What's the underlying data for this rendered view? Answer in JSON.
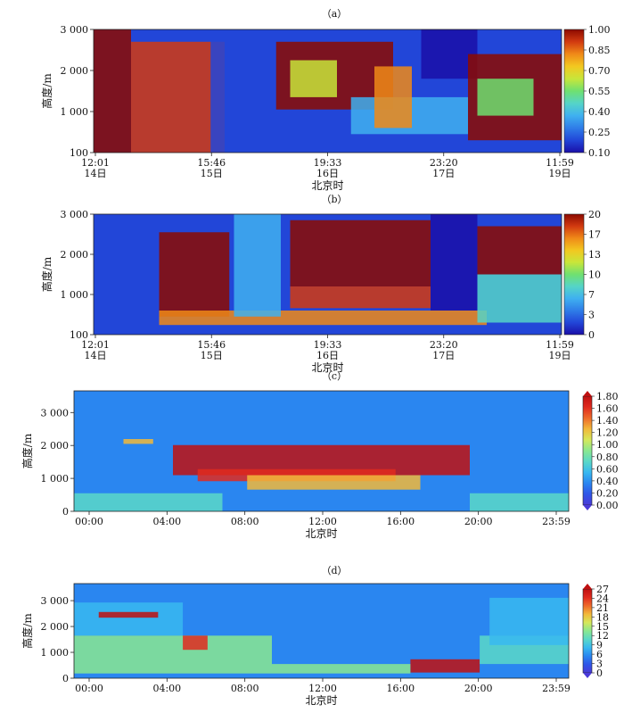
{
  "chart_data": [
    {
      "panel": "（a）",
      "type": "heatmap",
      "xlabel": "北京时",
      "ylabel": "高度/m",
      "x_ticks": [
        {
          "time": "12:01",
          "day": "14日"
        },
        {
          "time": "15:46",
          "day": "15日"
        },
        {
          "time": "19:33",
          "day": "16日"
        },
        {
          "time": "23:20",
          "day": "17日"
        },
        {
          "time": "11:59",
          "day": "19日"
        }
      ],
      "y_ticks": [
        "100",
        "1 000",
        "2 000",
        "3 000"
      ],
      "ylim": [
        100,
        3000
      ],
      "colorbar": {
        "ticks": [
          "1.00",
          "0.85",
          "0.70",
          "0.55",
          "0.40",
          "0.25",
          "0.10"
        ],
        "range": [
          0.1,
          1.0
        ],
        "colors": [
          "#1a0fa8",
          "#2246d8",
          "#2f7de8",
          "#3fb0f0",
          "#55d4c8",
          "#6fe070",
          "#c8e63a",
          "#f2c820",
          "#f08a18",
          "#d23a10",
          "#8c0a00"
        ]
      }
    },
    {
      "panel": "（b）",
      "type": "heatmap",
      "xlabel": "北京时",
      "ylabel": "高度/m",
      "x_ticks": [
        {
          "time": "12:01",
          "day": "14日"
        },
        {
          "time": "15:46",
          "day": "15日"
        },
        {
          "time": "19:33",
          "day": "16日"
        },
        {
          "time": "23:20",
          "day": "17日"
        },
        {
          "time": "11:59",
          "day": "19日"
        }
      ],
      "y_ticks": [
        "100",
        "1 000",
        "2 000",
        "3 000"
      ],
      "ylim": [
        100,
        3000
      ],
      "colorbar": {
        "ticks": [
          "20",
          "17",
          "13",
          "10",
          "7",
          "3",
          "0"
        ],
        "range": [
          0,
          20
        ],
        "colors": [
          "#1a0fa8",
          "#2246d8",
          "#2f7de8",
          "#3fb0f0",
          "#55d4c8",
          "#6fe070",
          "#c8e63a",
          "#f2c820",
          "#f08a18",
          "#d23a10",
          "#8c0a00"
        ]
      }
    },
    {
      "panel": "（c）",
      "type": "heatmap",
      "xlabel": "北京时",
      "ylabel": "高度/m",
      "x_ticks": [
        "00:00",
        "04:00",
        "08:00",
        "12:00",
        "16:00",
        "20:00",
        "23:59"
      ],
      "y_ticks": [
        "0",
        "1 000",
        "2 000",
        "3 000"
      ],
      "ylim": [
        0,
        3700
      ],
      "colorbar": {
        "ticks": [
          "1.80",
          "1.60",
          "1.40",
          "1.20",
          "1.00",
          "0.80",
          "0.60",
          "0.40",
          "0.20",
          "0.00"
        ],
        "range": [
          0,
          1.8
        ],
        "colors": [
          "#4a3ad8",
          "#2f55e8",
          "#2a86f0",
          "#38b8f0",
          "#5ad8c8",
          "#8ae890",
          "#d6e85a",
          "#f2b83a",
          "#ee6a2a",
          "#e02a1e",
          "#c01010"
        ]
      }
    },
    {
      "panel": "（d）",
      "type": "heatmap",
      "xlabel": "北京时",
      "ylabel": "高度/m",
      "x_ticks": [
        "00:00",
        "04:00",
        "08:00",
        "12:00",
        "16:00",
        "20:00",
        "23:59"
      ],
      "y_ticks": [
        "0",
        "1 000",
        "2 000",
        "3 000"
      ],
      "ylim": [
        0,
        3700
      ],
      "colorbar": {
        "ticks": [
          "27",
          "24",
          "21",
          "18",
          "15",
          "12",
          "9",
          "6",
          "3",
          "0"
        ],
        "range": [
          0,
          27
        ],
        "colors": [
          "#4a3ad8",
          "#2f55e8",
          "#2a86f0",
          "#38b8f0",
          "#5ad8c8",
          "#8ae890",
          "#d6e85a",
          "#f2b83a",
          "#ee6a2a",
          "#e02a1e",
          "#c01010"
        ]
      }
    }
  ]
}
